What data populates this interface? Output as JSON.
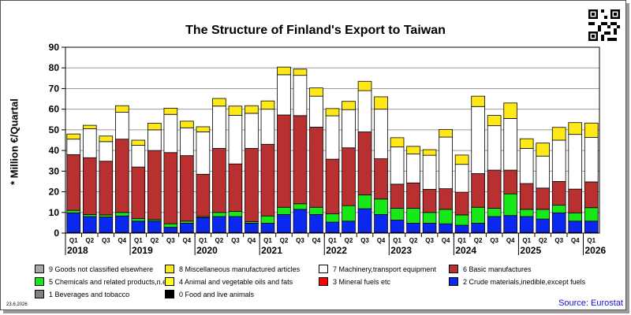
{
  "chart_data": {
    "type": "bar",
    "stacked": true,
    "title": "The Structure of Finland's Export to Taiwan",
    "ylabel": "* Million €/Quartal",
    "ylim": [
      0,
      90
    ],
    "yticks": [
      0,
      10,
      20,
      30,
      40,
      50,
      60,
      70,
      80,
      90
    ],
    "grid": true,
    "categories": [
      "2018 Q1",
      "2018 Q2",
      "2018 Q3",
      "2018 Q4",
      "2019 Q1",
      "2019 Q2",
      "2019 Q3",
      "2019 Q4",
      "2020 Q1",
      "2020 Q2",
      "2020 Q3",
      "2020 Q4",
      "2021 Q1",
      "2021 Q2",
      "2021 Q3",
      "2021 Q4",
      "2022 Q1",
      "2022 Q2",
      "2022 Q3",
      "2022 Q4",
      "2023 Q1",
      "2023 Q2",
      "2023 Q3",
      "2023 Q4",
      "2024 Q1",
      "2024 Q2",
      "2024 Q3",
      "2024 Q4",
      "2025 Q1",
      "2025 Q2",
      "2025 Q3",
      "2025 Q4",
      "2026 Q1"
    ],
    "quarter_labels": [
      "Q1",
      "Q2",
      "Q3",
      "Q4",
      "Q1",
      "Q2",
      "Q3",
      "Q4",
      "Q1",
      "Q2",
      "Q3",
      "Q4",
      "Q1",
      "Q2",
      "Q3",
      "Q4",
      "Q1",
      "Q2",
      "Q3",
      "Q4",
      "Q1",
      "Q2",
      "Q3",
      "Q4",
      "Q1",
      "Q2",
      "Q3",
      "Q4",
      "Q1",
      "Q2",
      "Q3",
      "Q4",
      "Q1"
    ],
    "years": [
      "2018",
      "2019",
      "2020",
      "2021",
      "2022",
      "2023",
      "2024",
      "2025",
      "2026"
    ],
    "series": [
      {
        "name": "0 Food and live animals",
        "color": "#000000",
        "values": [
          0.3,
          0.3,
          0.3,
          0.3,
          0.3,
          0.3,
          0.3,
          0.3,
          0.3,
          0.3,
          0.3,
          0.3,
          0.3,
          0.3,
          0.3,
          0.3,
          0.3,
          0.3,
          0.3,
          0.3,
          0.3,
          0.3,
          0.3,
          0.3,
          0.3,
          0.3,
          0.3,
          0.3,
          0.3,
          0.3,
          0.3,
          0.3,
          0.3
        ]
      },
      {
        "name": "2 Crude materials,inedible,except fuels",
        "color": "#0a28f0",
        "values": [
          9.5,
          7.7,
          7.5,
          8.0,
          5.5,
          5.5,
          2.5,
          4.5,
          7.2,
          7.7,
          7.7,
          4.5,
          4.5,
          8.7,
          11.2,
          8.7,
          5.0,
          5.5,
          11.5,
          8.7,
          6.0,
          4.5,
          4.5,
          4.2,
          3.5,
          4.5,
          7.7,
          8.2,
          7.7,
          6.5,
          9.5,
          5.5,
          5.5
        ]
      },
      {
        "name": "5 Chemicals and related products,n.e.s.",
        "color": "#18e818",
        "values": [
          1.2,
          1.0,
          1.0,
          1.7,
          1.2,
          0.7,
          1.7,
          1.0,
          0.5,
          2.0,
          2.5,
          0.7,
          3.5,
          3.5,
          2.7,
          3.5,
          4.0,
          7.5,
          6.7,
          7.5,
          5.7,
          7.2,
          5.2,
          7.0,
          5.0,
          7.7,
          4.0,
          10.5,
          3.5,
          4.7,
          3.7,
          4.0,
          6.5
        ]
      },
      {
        "name": "6 Basic manufactures",
        "color": "#b83030",
        "values": [
          27.0,
          27.5,
          26.0,
          35.5,
          25.0,
          33.5,
          34.5,
          31.7,
          20.5,
          31.0,
          23.0,
          35.5,
          34.7,
          44.7,
          42.7,
          38.8,
          26.5,
          28.0,
          30.5,
          19.5,
          11.7,
          12.3,
          11.2,
          10.0,
          11.0,
          16.3,
          18.5,
          11.5,
          12.5,
          10.3,
          11.5,
          11.5,
          12.5
        ]
      },
      {
        "name": "7 Machinery,transport equipment",
        "color": "#ffffff",
        "values": [
          7.5,
          14.0,
          9.5,
          13.0,
          10.5,
          10.0,
          18.5,
          13.5,
          20.5,
          20.5,
          23.5,
          17.0,
          17.0,
          19.5,
          19.5,
          15.0,
          21.0,
          18.5,
          20.0,
          24.0,
          18.0,
          14.0,
          16.5,
          25.0,
          13.5,
          32.5,
          21.5,
          25.0,
          17.0,
          15.5,
          20.0,
          26.5,
          21.5
        ]
      },
      {
        "name": "8 Miscellaneous manufactured articles",
        "color": "#ffe818",
        "values": [
          2.5,
          1.7,
          2.7,
          3.2,
          2.5,
          3.2,
          3.0,
          3.2,
          2.5,
          3.7,
          4.5,
          3.7,
          4.0,
          3.7,
          3.0,
          4.0,
          3.5,
          4.0,
          4.5,
          6.0,
          4.5,
          3.7,
          2.7,
          3.7,
          4.5,
          5.0,
          5.0,
          7.5,
          4.7,
          6.3,
          6.2,
          5.7,
          7.0
        ]
      }
    ],
    "legend_placement": "bottom"
  },
  "legend": [
    {
      "label": "9 Goods not classified elsewhere",
      "color": "#a8a8a8"
    },
    {
      "label": "8 Miscellaneous manufactured articles",
      "color": "#ffe818"
    },
    {
      "label": "7 Machinery,transport equipment",
      "color": "#ffffff"
    },
    {
      "label": "6 Basic manufactures",
      "color": "#b83030"
    },
    {
      "label": "5 Chemicals and related products,n.e.s.",
      "color": "#18e818"
    },
    {
      "label": "4 Animal and vegetable oils and fats",
      "color": "#ffff20"
    },
    {
      "label": "3 Mineral fuels etc",
      "color": "#ff0000"
    },
    {
      "label": "2 Crude materials,inedible,except fuels",
      "color": "#0a28f0"
    },
    {
      "label": "1 Beverages and tobacco",
      "color": "#808080"
    },
    {
      "label": "0 Food and live animals",
      "color": "#000000"
    }
  ],
  "footer": {
    "date": "23.6.2026",
    "source": "Source: Eurostat"
  }
}
